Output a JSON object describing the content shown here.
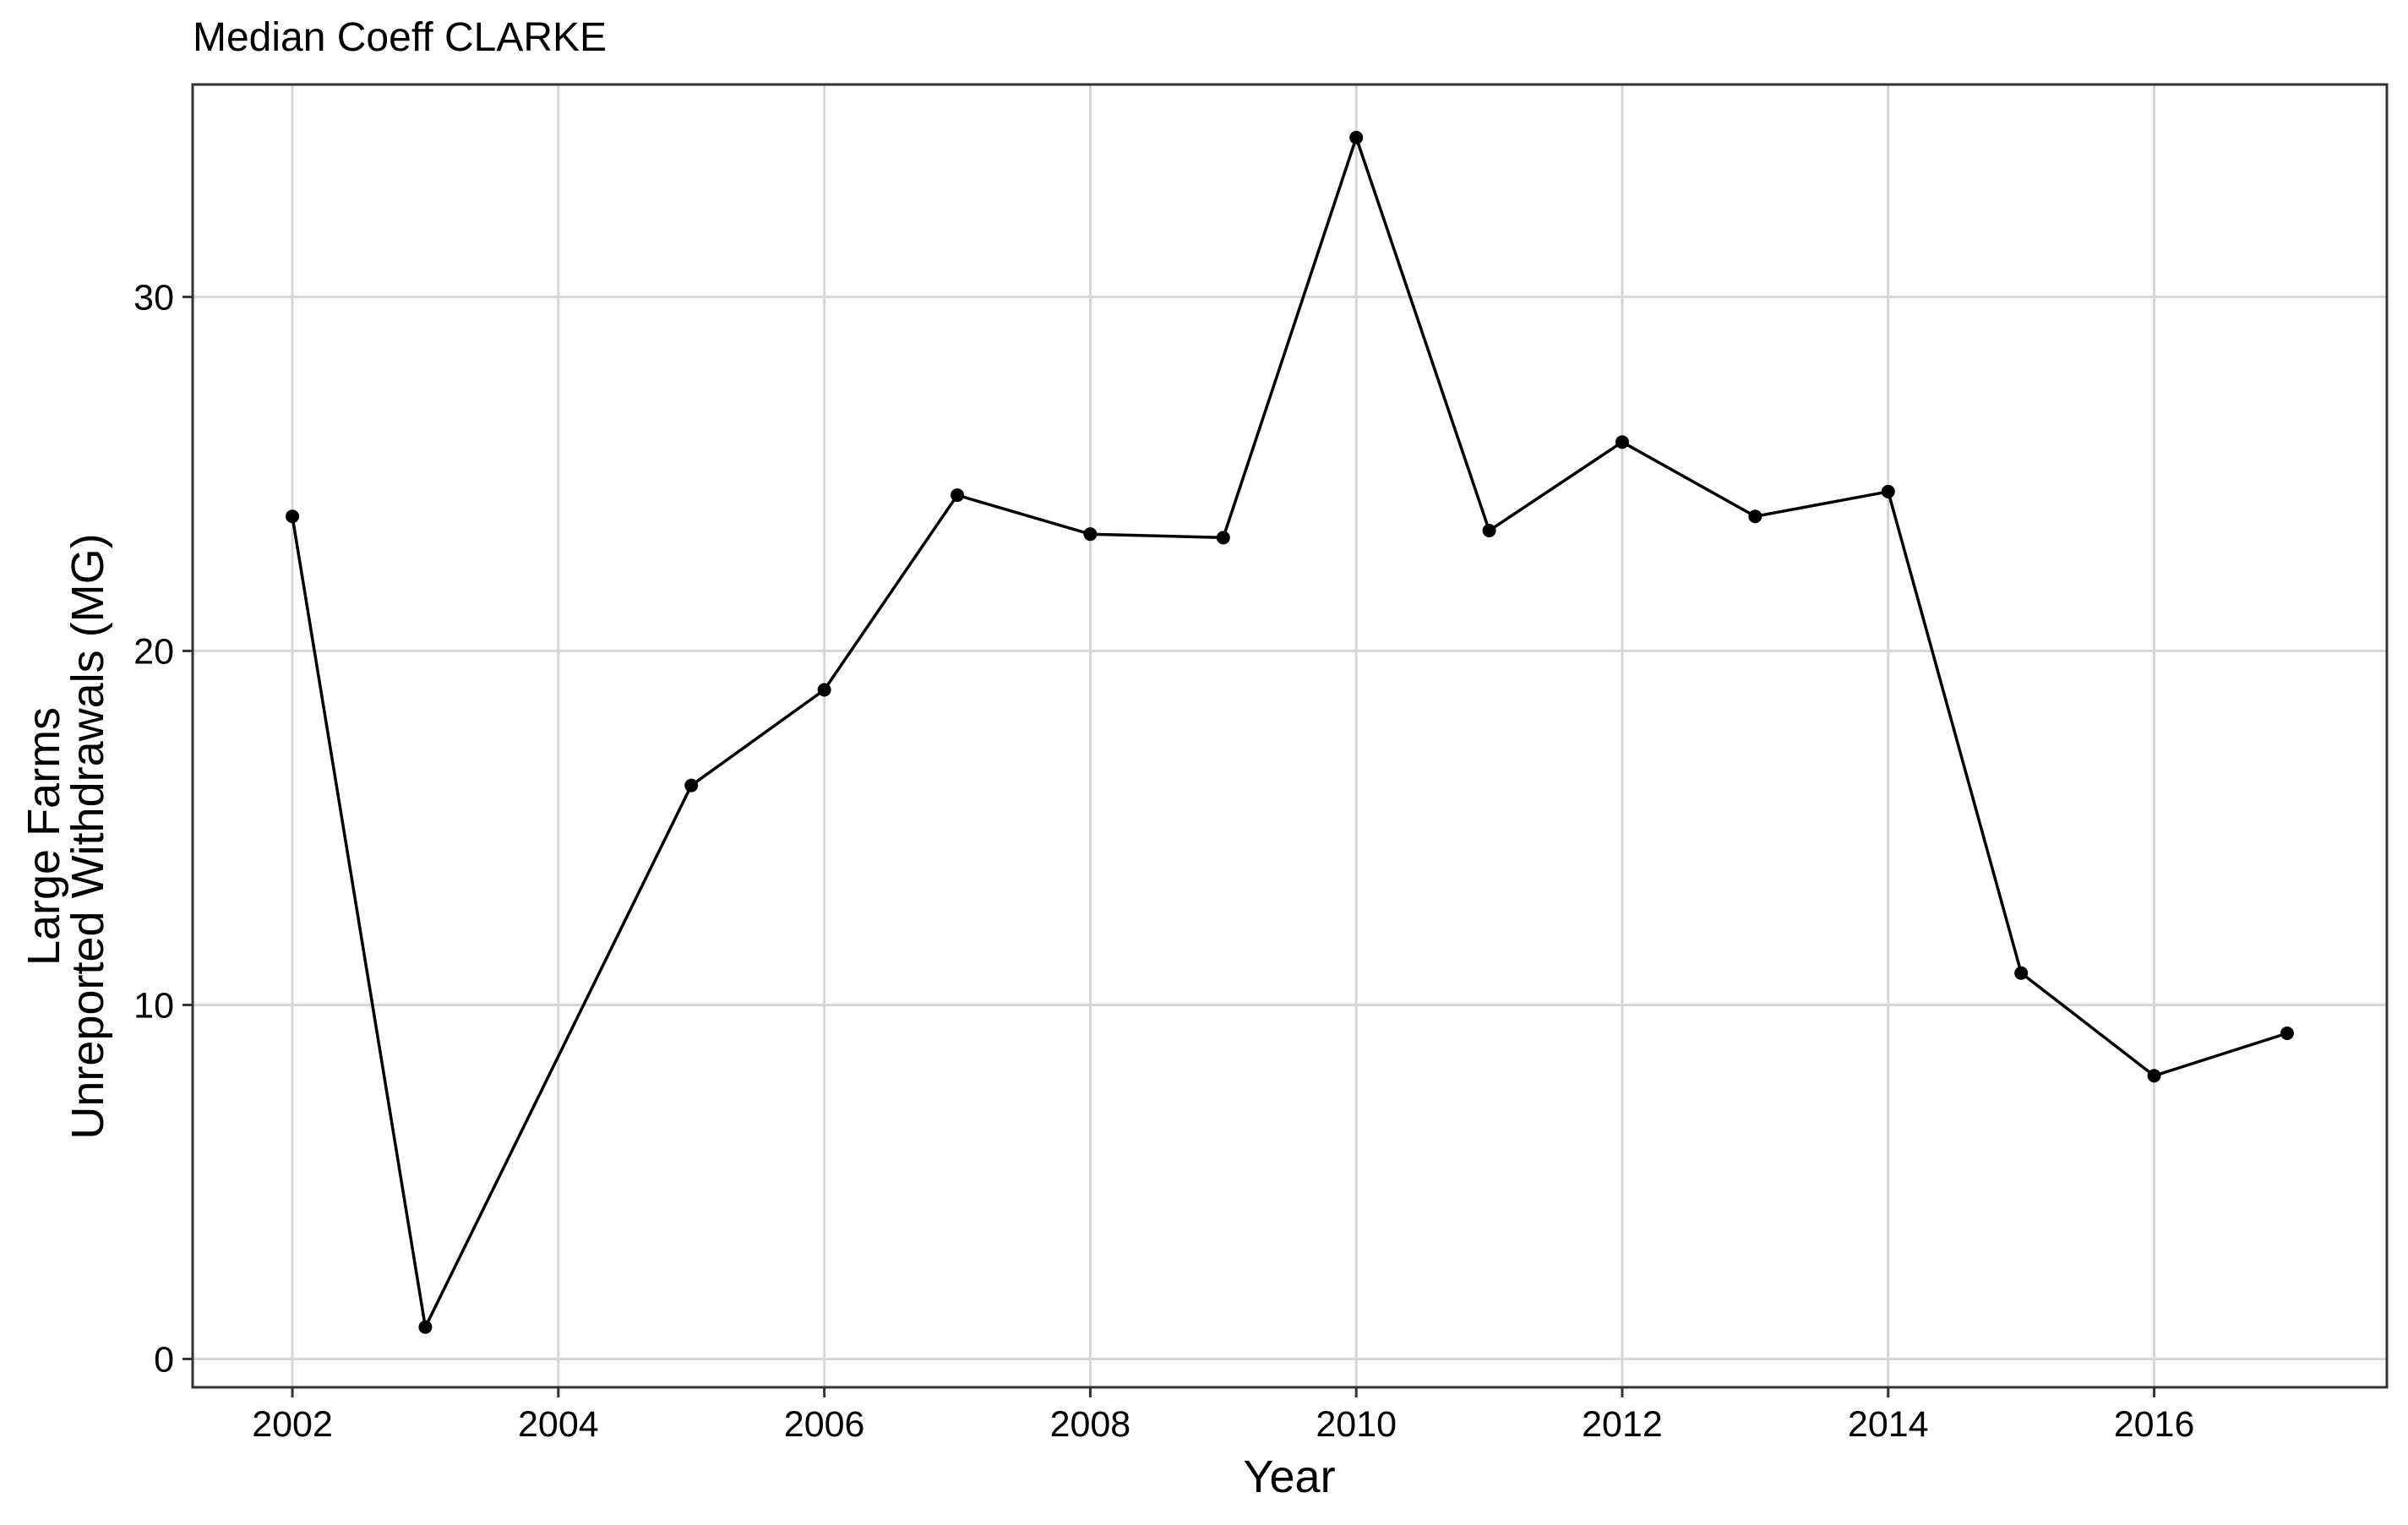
{
  "chart_data": {
    "type": "line",
    "title": "Median Coeff CLARKE",
    "xlabel": "Year",
    "ylabel_lines": [
      "Large Farms",
      "Unreported Withdrawals (MG)"
    ],
    "xlim": [
      2001.25,
      2017.75
    ],
    "ylim": [
      -0.8,
      36.0
    ],
    "x_ticks": [
      2002,
      2004,
      2006,
      2008,
      2010,
      2012,
      2014,
      2016
    ],
    "y_ticks": [
      0,
      10,
      20,
      30
    ],
    "grid": true,
    "legend": "none",
    "series": [
      {
        "color": "#000000",
        "x": [
          2002,
          2003,
          2005,
          2006,
          2007,
          2008,
          2009,
          2010,
          2011,
          2012,
          2013,
          2014,
          2015,
          2016,
          2017
        ],
        "y": [
          23.8,
          0.9,
          16.2,
          18.9,
          24.4,
          23.3,
          23.2,
          34.5,
          23.4,
          25.9,
          23.8,
          24.5,
          10.9,
          8.0,
          9.2
        ]
      }
    ]
  }
}
